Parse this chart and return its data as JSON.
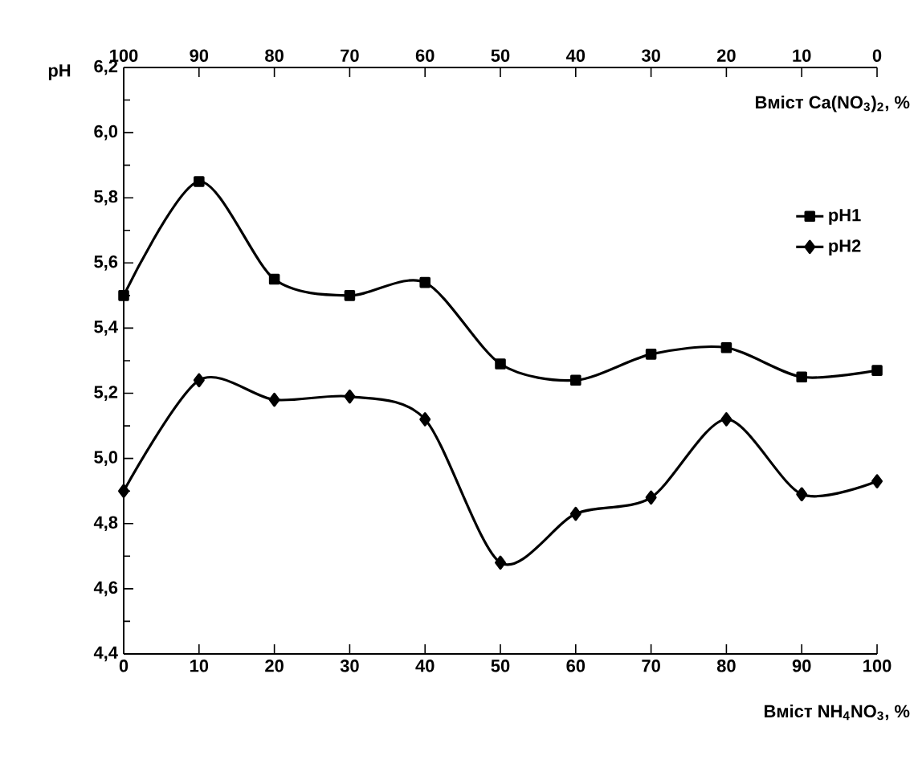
{
  "chart_data": {
    "type": "line",
    "xlabel": "Вміст NH$_{4}$NO$_{3}$, %",
    "x2label": "Вміст Ca(NO$_{3}$)$_{2}$, %",
    "ylabel": "pH",
    "x": [
      0,
      10,
      20,
      30,
      40,
      50,
      60,
      70,
      80,
      90,
      100
    ],
    "series": [
      {
        "name": "pH1",
        "color": "#000000",
        "marker": "square",
        "values": [
          5.5,
          5.85,
          5.55,
          5.5,
          5.54,
          5.29,
          5.24,
          5.32,
          5.34,
          5.25,
          5.27
        ]
      },
      {
        "name": "pH2",
        "color": "#000000",
        "marker": "diamond",
        "values": [
          4.9,
          5.24,
          5.18,
          5.19,
          5.12,
          4.68,
          4.83,
          4.88,
          5.12,
          4.89,
          4.93
        ]
      }
    ],
    "xlim": [
      0,
      100
    ],
    "xticks": [
      0,
      10,
      20,
      30,
      40,
      50,
      60,
      70,
      80,
      90,
      100
    ],
    "x2lim": [
      100,
      0
    ],
    "x2ticks": [
      100,
      90,
      80,
      70,
      60,
      50,
      40,
      30,
      20,
      10,
      0
    ],
    "ylim": [
      4.4,
      6.2
    ],
    "yticks": [
      {
        "value": 4.4,
        "label": "4,4"
      },
      {
        "value": 4.6,
        "label": "4,6"
      },
      {
        "value": 4.8,
        "label": "4,8"
      },
      {
        "value": 5.0,
        "label": "5,0"
      },
      {
        "value": 5.2,
        "label": "5,2"
      },
      {
        "value": 5.4,
        "label": "5,4"
      },
      {
        "value": 5.6,
        "label": "5,6"
      },
      {
        "value": 5.8,
        "label": "5,8"
      },
      {
        "value": 6.0,
        "label": "6,0"
      },
      {
        "value": 6.2,
        "label": "6,2"
      }
    ],
    "grid": false,
    "legend": "right",
    "line_style": "solid"
  }
}
